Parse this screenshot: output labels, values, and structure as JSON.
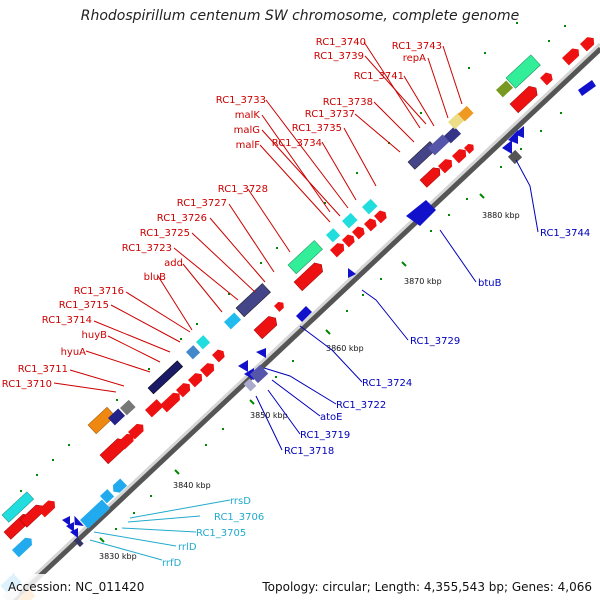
{
  "title": "Rhodospirillum centenum SW chromosome, complete genome",
  "footer": {
    "accession": "Accession: NC_011420",
    "summary": "Topology: circular; Length: 4,355,543 bp; Genes: 4,066"
  },
  "colors": {
    "plus_gene": "#ee1111",
    "minus_gene": "#1111cc",
    "rrna": "#00dddd",
    "label_red": "#cc0000",
    "label_blue": "#0000bb",
    "label_cyan": "#22aacc",
    "backbone": "#999999",
    "tick_green": "#008800"
  },
  "scale_ticks": [
    "3830 kbp",
    "3840 kbp",
    "3850 kbp",
    "3860 kbp",
    "3870 kbp",
    "3880 kbp"
  ],
  "labels": {
    "red": [
      "RC1_3710",
      "RC1_3711",
      "hyuA",
      "huyB",
      "RC1_3714",
      "RC1_3715",
      "RC1_3716",
      "bluB",
      "add",
      "RC1_3723",
      "RC1_3725",
      "RC1_3726",
      "RC1_3727",
      "RC1_3728",
      "malF",
      "RC1_3734",
      "malG",
      "RC1_3735",
      "malK",
      "RC1_3737",
      "RC1_3733",
      "RC1_3738",
      "RC1_3741",
      "RC1_3739",
      "repA",
      "RC1_3740",
      "RC1_3743"
    ],
    "blue": [
      "RC1_3744",
      "btuB",
      "RC1_3729",
      "RC1_3724",
      "RC1_3722",
      "atoE",
      "RC1_3719",
      "RC1_3718"
    ],
    "cyan": [
      "rrsD",
      "RC1_3706",
      "RC1_3705",
      "rrlD",
      "rrfD"
    ]
  }
}
